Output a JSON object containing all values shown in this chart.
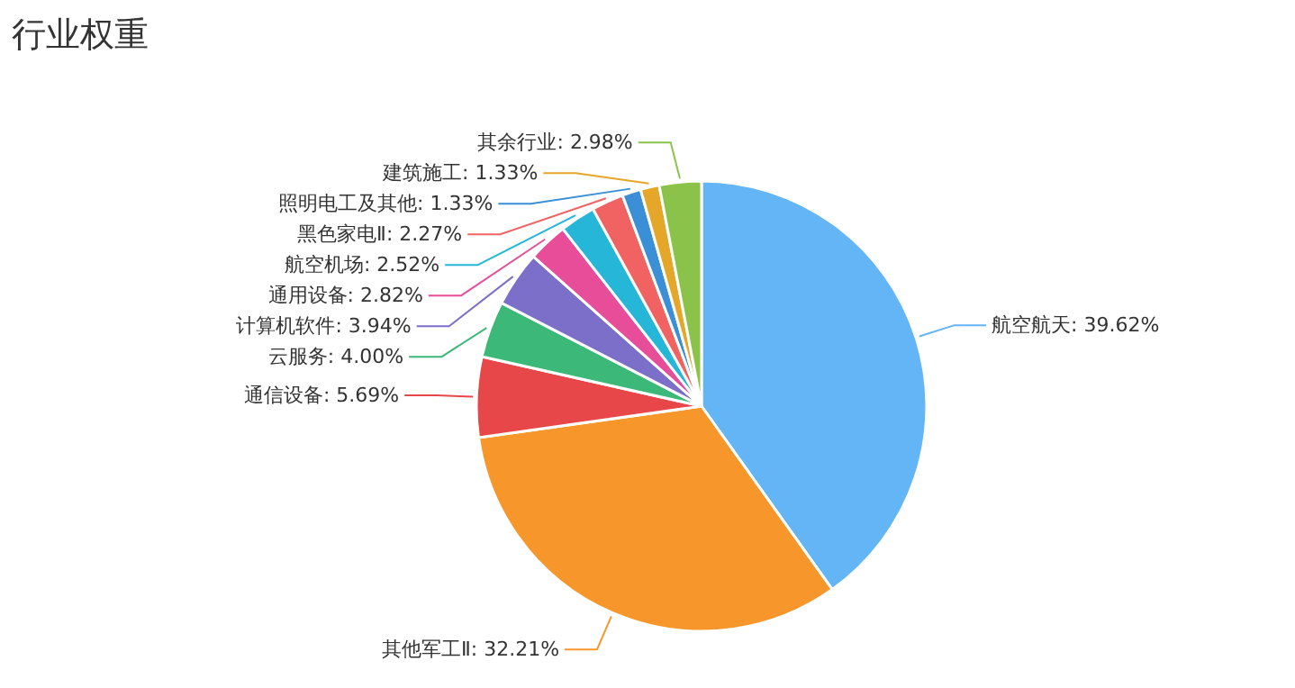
{
  "chart_data": {
    "type": "pie",
    "title": "行业权重",
    "categories": [
      "航空航天",
      "其他军工Ⅱ",
      "通信设备",
      "云服务",
      "计算机软件",
      "通用设备",
      "航空机场",
      "黑色家电Ⅱ",
      "照明电工及其他",
      "建筑施工",
      "其余行业"
    ],
    "values": [
      39.62,
      32.21,
      5.69,
      4.0,
      3.94,
      2.82,
      2.52,
      2.27,
      1.33,
      1.33,
      2.98
    ],
    "value_labels": [
      "39.62%",
      "32.21%",
      "5.69%",
      "4.00%",
      "3.94%",
      "2.82%",
      "2.52%",
      "2.27%",
      "1.33%",
      "1.33%",
      "2.98%"
    ],
    "colors": [
      "#64b5f6",
      "#f7962a",
      "#e8474a",
      "#3cb878",
      "#7b6fc9",
      "#e84d9a",
      "#25b6d8",
      "#f16363",
      "#3a8fd6",
      "#e4a729",
      "#8bc34a"
    ]
  }
}
